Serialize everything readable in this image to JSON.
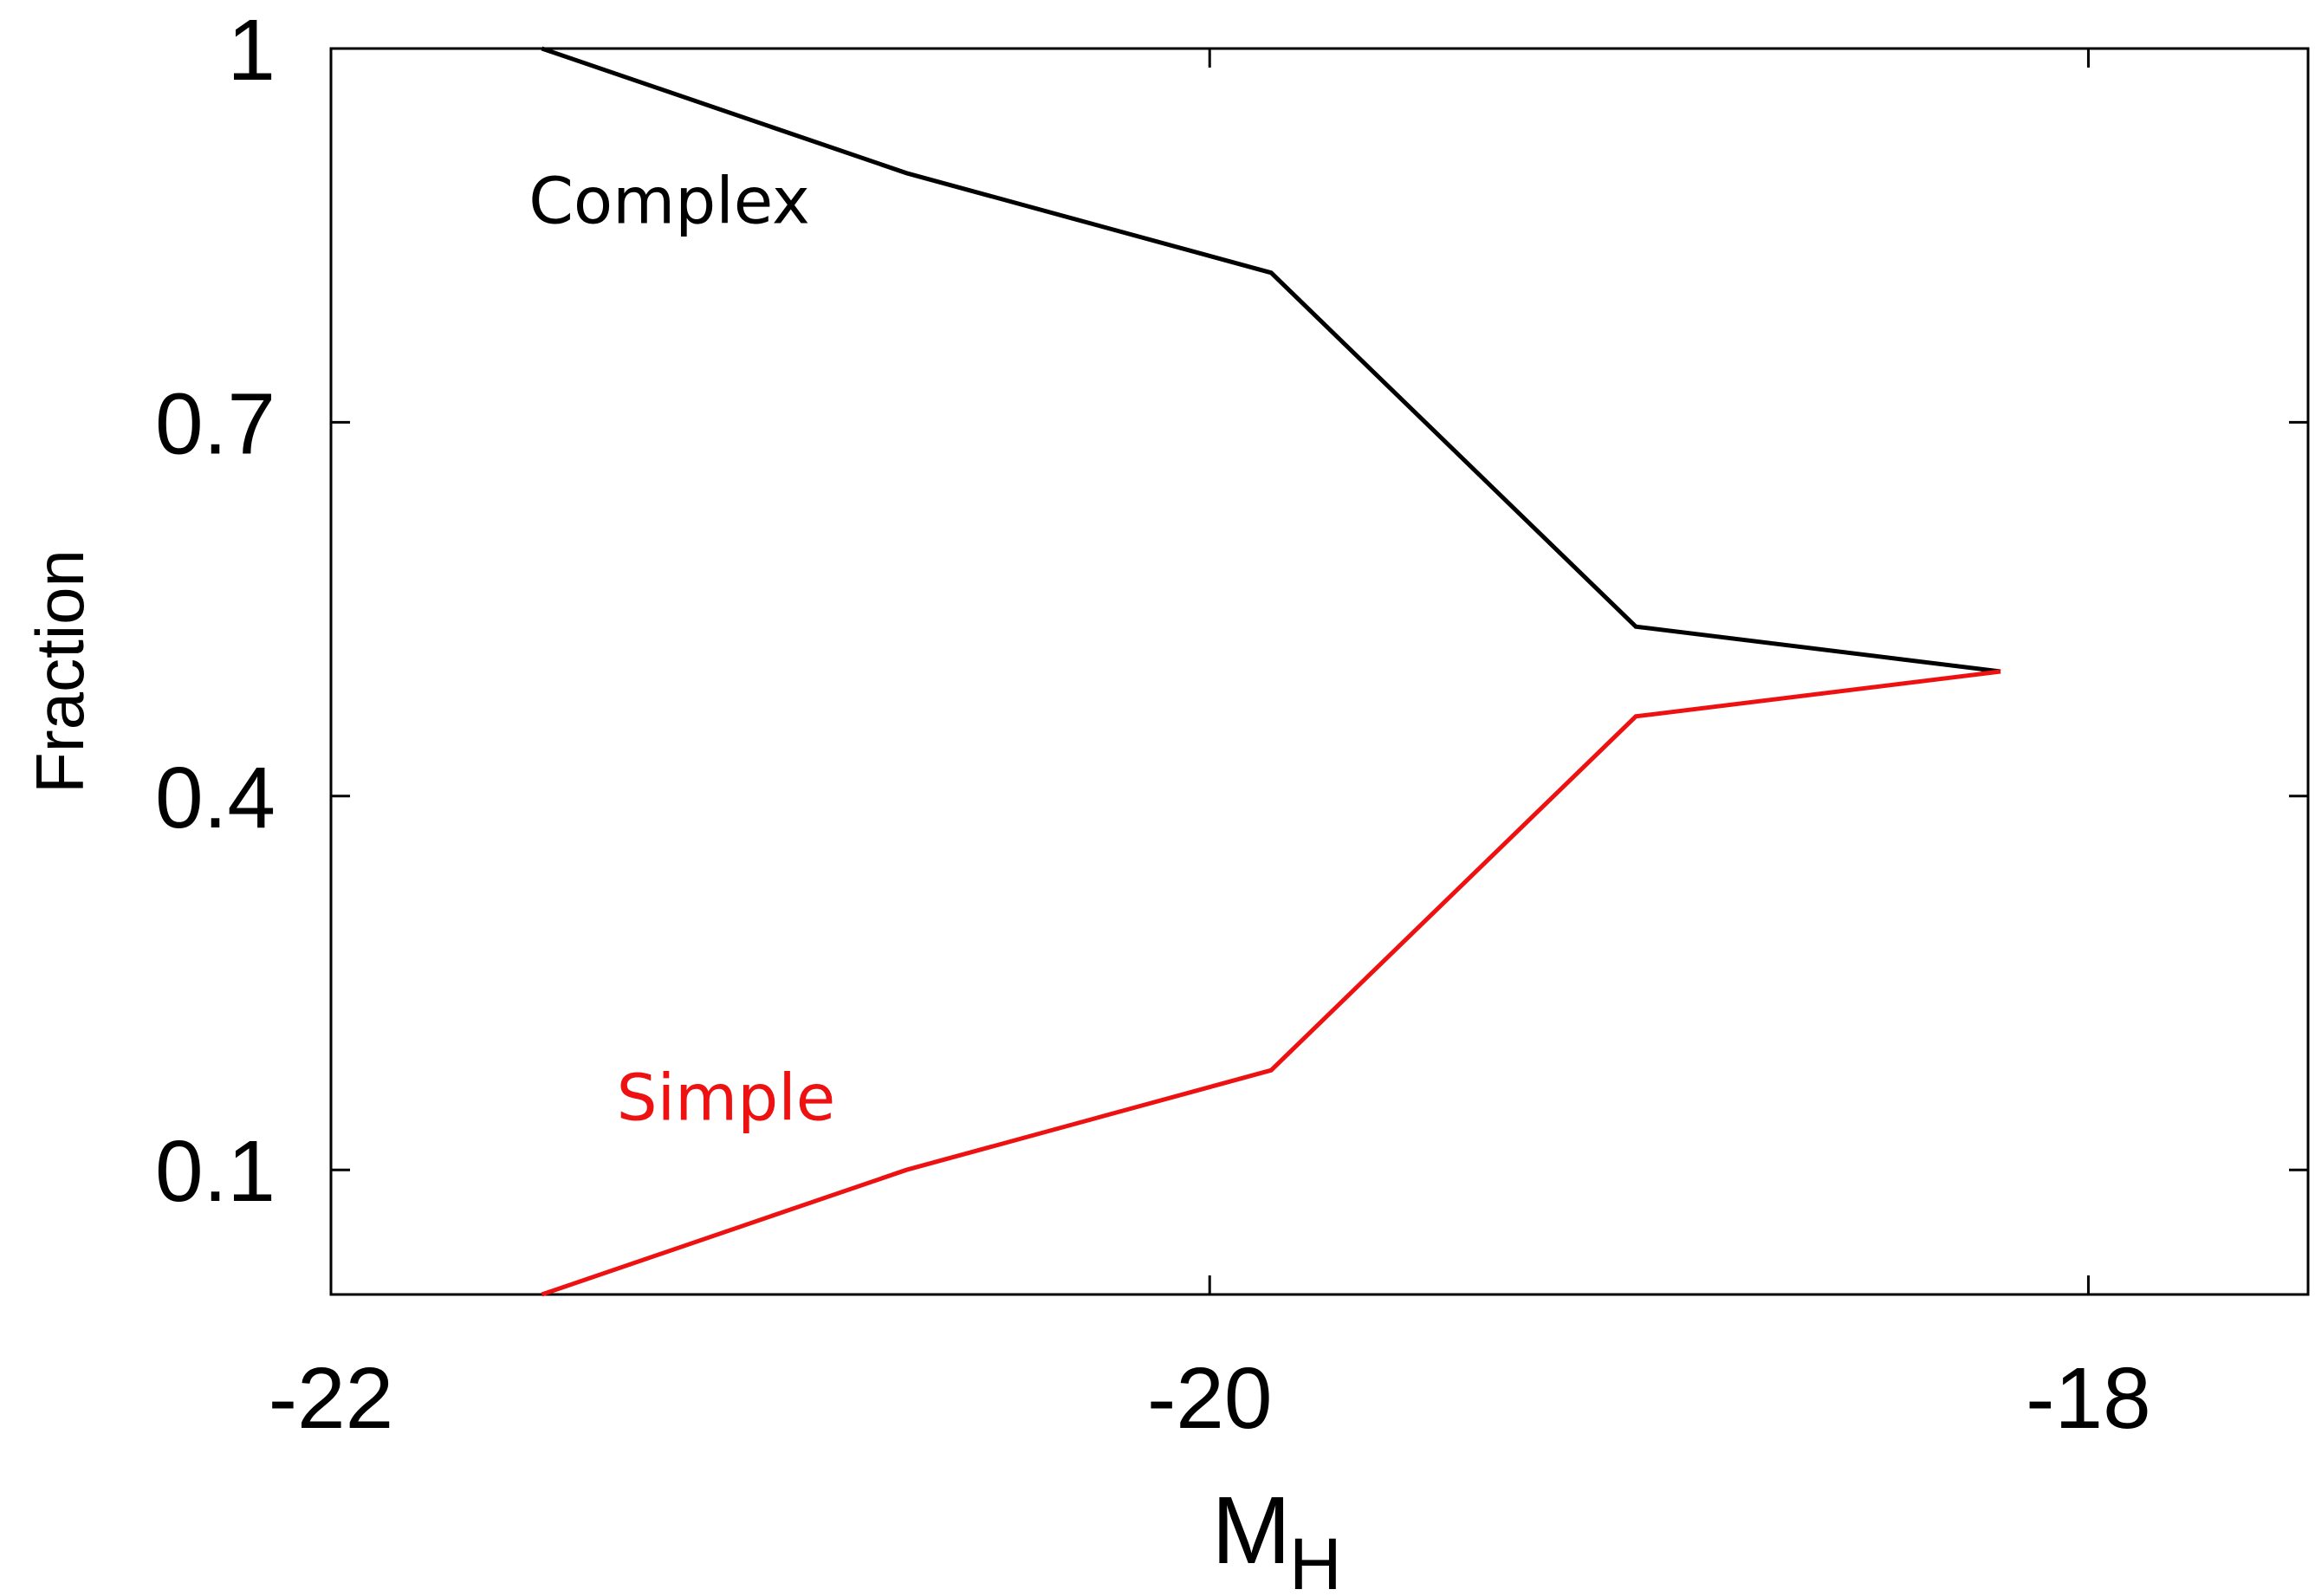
{
  "chart_data": {
    "type": "line",
    "title": "",
    "xlabel": "M",
    "xlabel_subscript": "H",
    "ylabel": "Fraction",
    "xlim": [
      -22,
      -17.5
    ],
    "ylim": [
      0,
      1
    ],
    "xticks": [
      -22,
      -20,
      -18
    ],
    "xtick_labels": [
      "-22",
      "-20",
      "-18"
    ],
    "yticks": [
      0.1,
      0.4,
      0.7,
      1
    ],
    "ytick_labels": [
      "0.1",
      "0.4",
      "0.7",
      "1"
    ],
    "grid": false,
    "series": [
      {
        "name": "Complex",
        "color": "#000000",
        "x": [
          -21.52,
          -20.69,
          -19.86,
          -19.03,
          -18.2
        ],
        "y": [
          1.0,
          0.9,
          0.82,
          0.536,
          0.5
        ]
      },
      {
        "name": "Simple",
        "color": "#ee1111",
        "x": [
          -21.52,
          -20.69,
          -19.86,
          -19.03,
          -18.2
        ],
        "y": [
          0.0,
          0.1,
          0.18,
          0.464,
          0.5
        ]
      }
    ],
    "annotations": [
      {
        "text": "Complex",
        "color": "#000000",
        "x": -21.55,
        "y": 0.86
      },
      {
        "text": "Simple",
        "color": "#ee1111",
        "x": -21.35,
        "y": 0.14
      }
    ]
  }
}
